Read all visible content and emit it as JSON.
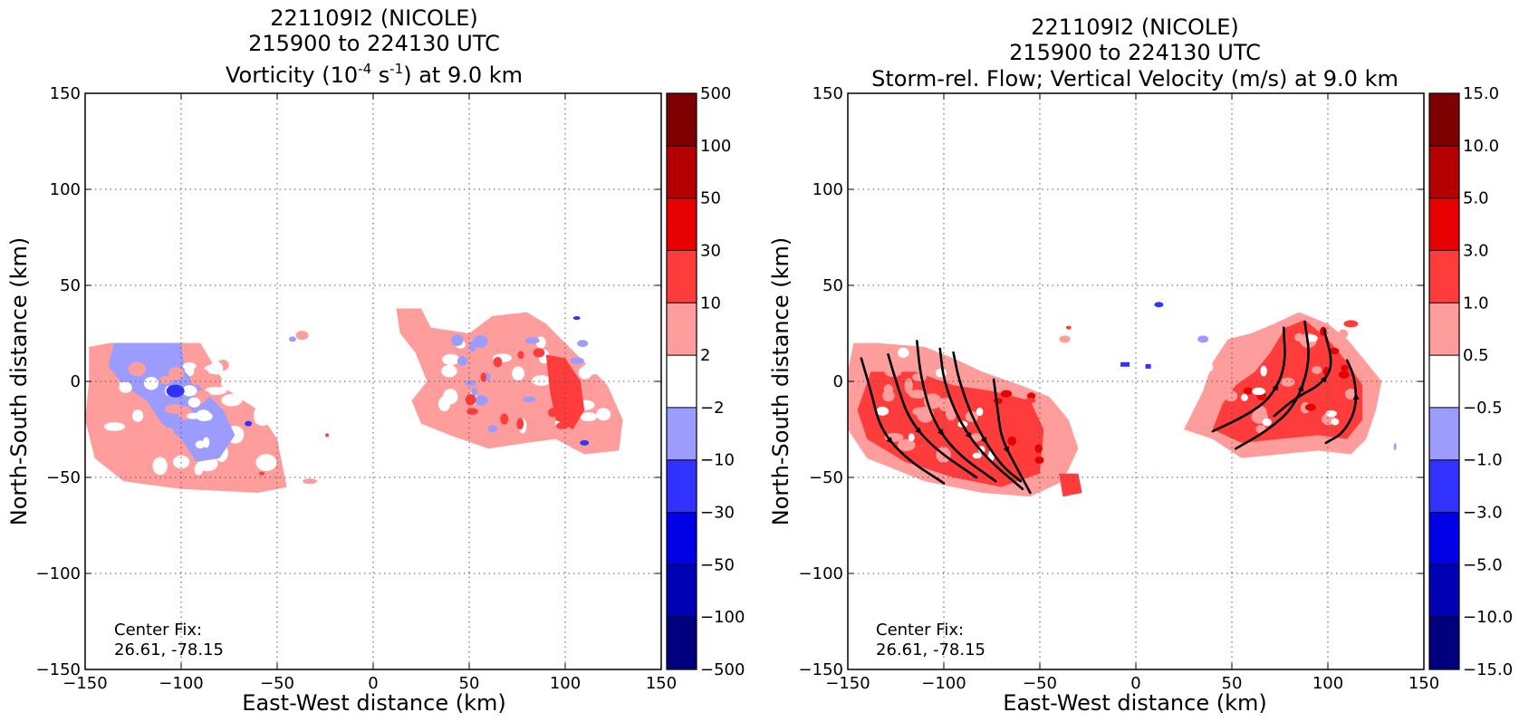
{
  "chart_data": [
    {
      "type": "heatmap",
      "title_lines": [
        "221109I2 (NICOLE)",
        "215900 to 224130 UTC"
      ],
      "title_line3": {
        "pre": "Vorticity (10",
        "sup1": "-4",
        "mid": " s",
        "sup2": "-1",
        "post": ") at 9.0 km"
      },
      "xlabel": "East-West distance (km)",
      "ylabel": "North-South distance (km)",
      "xlim": [
        -150,
        150
      ],
      "ylim": [
        -150,
        150
      ],
      "xticks": [
        "−150",
        "−100",
        "−50",
        "0",
        "50",
        "100",
        "150"
      ],
      "yticks": [
        "−150",
        "−100",
        "−50",
        "0",
        "50",
        "100",
        "150"
      ],
      "grid": true,
      "annotation_lines": [
        "Center Fix:",
        "26.61, -78.15"
      ],
      "colorbar": {
        "levels": [
          "500",
          "100",
          "50",
          "30",
          "10",
          "2",
          "−2",
          "−10",
          "−30",
          "−50",
          "−100",
          "−500"
        ],
        "colors": [
          "#7f0000",
          "#b40000",
          "#e60000",
          "#ff3c3c",
          "#ff9c9c",
          "#ffffff",
          "#9c9cff",
          "#3232ff",
          "#0000e6",
          "#0000b4",
          "#00007f"
        ]
      },
      "regions": [
        {
          "level": "+2 to +10",
          "x": [
            -148,
            -40
          ],
          "y": [
            -60,
            20
          ]
        },
        {
          "level": "-2 to -10",
          "x": [
            -135,
            -65
          ],
          "y": [
            -50,
            20
          ]
        },
        {
          "level": "+2 to +10",
          "x": [
            12,
            132
          ],
          "y": [
            -35,
            38
          ]
        },
        {
          "level": "+10 to +30",
          "x": [
            90,
            112
          ],
          "y": [
            -20,
            12
          ]
        }
      ]
    },
    {
      "type": "heatmap",
      "title_lines": [
        "221109I2 (NICOLE)",
        "215900 to 224130 UTC",
        "Storm-rel. Flow; Vertical Velocity (m/s) at 9.0 km"
      ],
      "xlabel": "East-West distance (km)",
      "ylabel": "North-South distance (km)",
      "xlim": [
        -150,
        150
      ],
      "ylim": [
        -150,
        150
      ],
      "xticks": [
        "−150",
        "−100",
        "−50",
        "0",
        "50",
        "100",
        "150"
      ],
      "yticks": [
        "−150",
        "−100",
        "−50",
        "0",
        "50",
        "100",
        "150"
      ],
      "grid": true,
      "annotation_lines": [
        "Center Fix:",
        "26.61, -78.15"
      ],
      "colorbar": {
        "levels": [
          "15.0",
          "10.0",
          "5.0",
          "3.0",
          "1.0",
          "0.5",
          "−0.5",
          "−1.0",
          "−3.0",
          "−5.0",
          "−10.0",
          "−15.0"
        ],
        "colors": [
          "#7f0000",
          "#b40000",
          "#e60000",
          "#ff3c3c",
          "#ff9c9c",
          "#ffffff",
          "#9c9cff",
          "#3232ff",
          "#0000e6",
          "#0000b4",
          "#00007f"
        ]
      },
      "regions": [
        {
          "level": "+1.0 to +3.0",
          "x": [
            -150,
            -30
          ],
          "y": [
            -60,
            20
          ]
        },
        {
          "level": "+0.5 to +1.0",
          "x": [
            -150,
            -80
          ],
          "y": [
            -50,
            20
          ]
        },
        {
          "level": "+1.0 to +3.0",
          "x": [
            25,
            130
          ],
          "y": [
            -40,
            38
          ]
        }
      ],
      "streamlines": [
        [
          [
            -143,
            12
          ],
          [
            -138,
            -5
          ],
          [
            -133,
            -25
          ],
          [
            -120,
            -40
          ],
          [
            -100,
            -53
          ]
        ],
        [
          [
            -129,
            14
          ],
          [
            -124,
            -3
          ],
          [
            -118,
            -20
          ],
          [
            -105,
            -35
          ],
          [
            -83,
            -50
          ]
        ],
        [
          [
            -114,
            21
          ],
          [
            -112,
            2
          ],
          [
            -106,
            -20
          ],
          [
            -94,
            -37
          ],
          [
            -73,
            -52
          ]
        ],
        [
          [
            -102,
            17
          ],
          [
            -100,
            0
          ],
          [
            -92,
            -21
          ],
          [
            -79,
            -39
          ],
          [
            -59,
            -56
          ]
        ],
        [
          [
            -95,
            15
          ],
          [
            -92,
            0
          ],
          [
            -84,
            -22
          ],
          [
            -71,
            -43
          ],
          [
            -60,
            -52
          ]
        ],
        [
          [
            -74,
            1
          ],
          [
            -72,
            -15
          ],
          [
            -70,
            -30
          ],
          [
            -62,
            -45
          ],
          [
            -55,
            -58
          ]
        ],
        [
          [
            40,
            -26
          ],
          [
            57,
            -18
          ],
          [
            70,
            -9
          ],
          [
            78,
            7
          ],
          [
            77,
            28
          ]
        ],
        [
          [
            52,
            -35
          ],
          [
            68,
            -26
          ],
          [
            83,
            -13
          ],
          [
            91,
            10
          ],
          [
            88,
            31
          ]
        ],
        [
          [
            72,
            -18
          ],
          [
            84,
            -8
          ],
          [
            96,
            -2
          ],
          [
            103,
            8
          ],
          [
            98,
            27
          ]
        ],
        [
          [
            99,
            -32
          ],
          [
            108,
            -27
          ],
          [
            115,
            -14
          ],
          [
            114,
            2
          ],
          [
            110,
            11
          ]
        ]
      ]
    }
  ]
}
